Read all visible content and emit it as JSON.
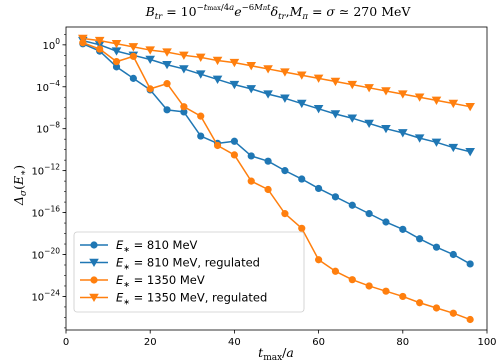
{
  "chart_data": {
    "type": "line",
    "title": "B_tr = 10^{−t_max/4a} e^{−6M_π t} δ_tr, M_π = σ ≃ 270 MeV",
    "xlabel": "t_max/a",
    "ylabel": "Δ_σ(E_*)",
    "xlim": [
      0,
      100
    ],
    "ylim_log10": [
      -27.2,
      1.7
    ],
    "y_scale": "log",
    "x_ticks": [
      0,
      20,
      40,
      60,
      80,
      100
    ],
    "y_ticks": [
      {
        "exp": 0,
        "label": "10^0"
      },
      {
        "exp": -4,
        "label": "10^-4"
      },
      {
        "exp": -8,
        "label": "10^-8"
      },
      {
        "exp": -12,
        "label": "10^-12"
      },
      {
        "exp": -16,
        "label": "10^-16"
      },
      {
        "exp": -20,
        "label": "10^-20"
      },
      {
        "exp": -24,
        "label": "10^-24"
      }
    ],
    "grid": false,
    "legend_position": "lower-left",
    "series": [
      {
        "name": "E_* = 810 MeV",
        "label_prefix": "E",
        "label_suffix": " = 810 MeV",
        "color": "#1f77b4",
        "marker": "circle",
        "x": [
          4,
          8,
          12,
          16,
          20,
          24,
          28,
          32,
          36,
          40,
          44,
          48,
          52,
          56,
          60,
          64,
          68,
          72,
          76,
          80,
          84,
          88,
          92,
          96
        ],
        "log10_y": [
          0.1,
          -0.6,
          -2.1,
          -3.2,
          -4.3,
          -6.2,
          -6.4,
          -8.7,
          -9.4,
          -9.2,
          -10.6,
          -11.1,
          -12.0,
          -12.8,
          -13.7,
          -14.5,
          -15.3,
          -16.1,
          -16.9,
          -17.6,
          -18.5,
          -19.3,
          -20.0,
          -20.9
        ]
      },
      {
        "name": "E_* = 810 MeV, regulated",
        "label_prefix": "E",
        "label_suffix": " = 810 MeV, regulated",
        "color": "#1f77b4",
        "marker": "triangle-down",
        "x": [
          4,
          8,
          12,
          16,
          20,
          24,
          28,
          32,
          36,
          40,
          44,
          48,
          52,
          56,
          60,
          64,
          68,
          72,
          76,
          80,
          84,
          88,
          92,
          96
        ],
        "log10_y": [
          0.4,
          0.0,
          -0.6,
          -1.0,
          -1.4,
          -1.9,
          -2.3,
          -2.8,
          -3.3,
          -3.8,
          -4.2,
          -4.7,
          -5.1,
          -5.6,
          -6.1,
          -6.6,
          -7.0,
          -7.5,
          -8.0,
          -8.4,
          -8.9,
          -9.3,
          -9.8,
          -10.2
        ]
      },
      {
        "name": "E_* = 1350 MeV",
        "label_prefix": "E",
        "label_suffix": " = 1350 MeV",
        "color": "#ff7f0e",
        "marker": "circle",
        "x": [
          4,
          8,
          12,
          16,
          20,
          24,
          28,
          32,
          36,
          40,
          44,
          48,
          52,
          56,
          60,
          64,
          68,
          72,
          76,
          80,
          84,
          88,
          92,
          96
        ],
        "log10_y": [
          0.2,
          -0.4,
          -1.6,
          -1.1,
          -4.2,
          -3.7,
          -5.9,
          -6.8,
          -9.6,
          -10.5,
          -13.0,
          -13.8,
          -16.1,
          -17.5,
          -20.5,
          -21.6,
          -22.4,
          -23.0,
          -23.5,
          -24.0,
          -24.6,
          -25.1,
          -25.6,
          -26.2
        ]
      },
      {
        "name": "E_* = 1350 MeV, regulated",
        "label_prefix": "E",
        "label_suffix": " = 1350 MeV, regulated",
        "color": "#ff7f0e",
        "marker": "triangle-down",
        "x": [
          4,
          8,
          12,
          16,
          20,
          24,
          28,
          32,
          36,
          40,
          44,
          48,
          52,
          56,
          60,
          64,
          68,
          72,
          76,
          80,
          84,
          88,
          92,
          96
        ],
        "log10_y": [
          0.6,
          0.4,
          0.1,
          -0.2,
          -0.5,
          -0.7,
          -1.0,
          -1.2,
          -1.5,
          -1.7,
          -2.0,
          -2.3,
          -2.6,
          -2.9,
          -3.2,
          -3.5,
          -3.8,
          -4.1,
          -4.4,
          -4.7,
          -5.0,
          -5.3,
          -5.6,
          -5.9
        ]
      }
    ]
  }
}
